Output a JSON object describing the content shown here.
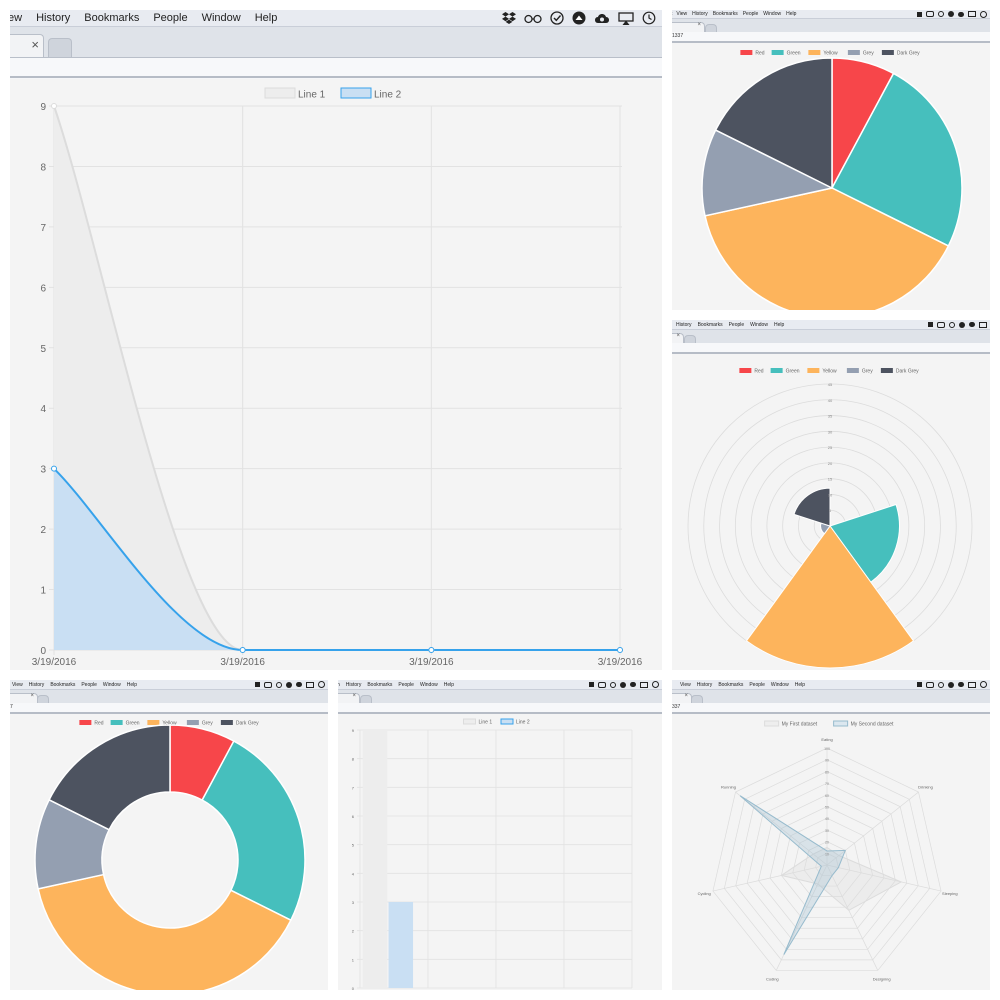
{
  "main": {
    "menu": [
      "ew",
      "History",
      "Bookmarks",
      "People",
      "Window",
      "Help"
    ],
    "tab_close": "×",
    "chart_data": {
      "type": "line",
      "categories": [
        "3/19/2016",
        "3/19/2016",
        "3/19/2016",
        "3/19/2016"
      ],
      "series": [
        {
          "name": "Line 1",
          "values": [
            9,
            0,
            0,
            0
          ]
        },
        {
          "name": "Line 2",
          "values": [
            3,
            0,
            0,
            0
          ]
        }
      ],
      "ylim": [
        0,
        9
      ],
      "yticks": [
        "0",
        "1",
        "2",
        "3",
        "4",
        "5",
        "6",
        "7",
        "8",
        "9"
      ],
      "grid": true,
      "legend": "top-center",
      "colors": {
        "line1": "#dcdcdc",
        "line2": "#36a2eb",
        "fill2": "#c9dff3",
        "fill1": "#ededed"
      }
    }
  },
  "pie": {
    "menu": [
      "t",
      "View",
      "History",
      "Bookmarks",
      "People",
      "Window",
      "Help"
    ],
    "addr": "1337",
    "tab_close": "×",
    "chart_data": {
      "type": "pie",
      "labels": [
        "Red",
        "Green",
        "Yellow",
        "Grey",
        "Dark Grey"
      ],
      "values": [
        8,
        25,
        40,
        11,
        18
      ],
      "colors": [
        "#f7464a",
        "#46bfbd",
        "#fdb45c",
        "#949fb1",
        "#4d5360"
      ],
      "legend": "top-center"
    }
  },
  "polar": {
    "menu": [
      "History",
      "Bookmarks",
      "People",
      "Window",
      "Help"
    ],
    "tab_close": "×",
    "chart_data": {
      "type": "polarArea",
      "labels": [
        "Red",
        "Green",
        "Yellow",
        "Grey",
        "Dark Grey"
      ],
      "values": [
        0,
        22,
        45,
        3,
        12
      ],
      "rmax": 45,
      "ticks": [
        "5",
        "10",
        "15",
        "20",
        "25",
        "30",
        "35",
        "40",
        "45"
      ],
      "colors": [
        "#f7464a",
        "#46bfbd",
        "#fdb45c",
        "#949fb1",
        "#4d5360"
      ],
      "legend": "top-center"
    }
  },
  "doughnut": {
    "menu": [
      "View",
      "History",
      "Bookmarks",
      "People",
      "Window",
      "Help"
    ],
    "addr": "7",
    "tab_close": "×",
    "chart_data": {
      "type": "doughnut",
      "labels": [
        "Red",
        "Green",
        "Yellow",
        "Grey",
        "Dark Grey"
      ],
      "values": [
        8,
        25,
        40,
        11,
        18
      ],
      "colors": [
        "#f7464a",
        "#46bfbd",
        "#fdb45c",
        "#949fb1",
        "#4d5360"
      ],
      "legend": "top-center"
    }
  },
  "bar": {
    "menu": [
      "n",
      "History",
      "Bookmarks",
      "People",
      "Window",
      "Help"
    ],
    "tab_close": "×",
    "chart_data": {
      "type": "bar",
      "categories": [
        "",
        "",
        "",
        ""
      ],
      "series": [
        {
          "name": "Line 1",
          "values": [
            9,
            0,
            0,
            0
          ]
        },
        {
          "name": "Line 2",
          "values": [
            3,
            0,
            0,
            0
          ]
        }
      ],
      "ylim": [
        0,
        9
      ],
      "yticks": [
        "0",
        "1",
        "2",
        "3",
        "4",
        "5",
        "6",
        "7",
        "8",
        "9"
      ],
      "legend": "top-center",
      "colors": {
        "line1": "#ededed",
        "line2": "#c9dff3",
        "line2_border": "#36a2eb"
      }
    }
  },
  "radar": {
    "menu": [
      "View",
      "History",
      "Bookmarks",
      "People",
      "Window",
      "Help"
    ],
    "addr": "337",
    "tab_close": "×",
    "chart_data": {
      "type": "radar",
      "labels": [
        "Eating",
        "Drinking",
        "Sleeping",
        "Designing",
        "Coding",
        "Cycling",
        "Running"
      ],
      "series": [
        {
          "name": "My First dataset",
          "values": [
            15,
            13,
            65,
            43,
            18,
            40,
            15
          ]
        },
        {
          "name": "My Second dataset",
          "values": [
            12,
            20,
            10,
            10,
            85,
            5,
            95
          ]
        }
      ],
      "rmax": 100,
      "ticks": [
        "10",
        "20",
        "30",
        "40",
        "50",
        "60",
        "70",
        "80",
        "90",
        "100"
      ],
      "legend": "top-center",
      "colors": {
        "first": "#dcdcdc",
        "second": "#97bbcd"
      }
    }
  }
}
